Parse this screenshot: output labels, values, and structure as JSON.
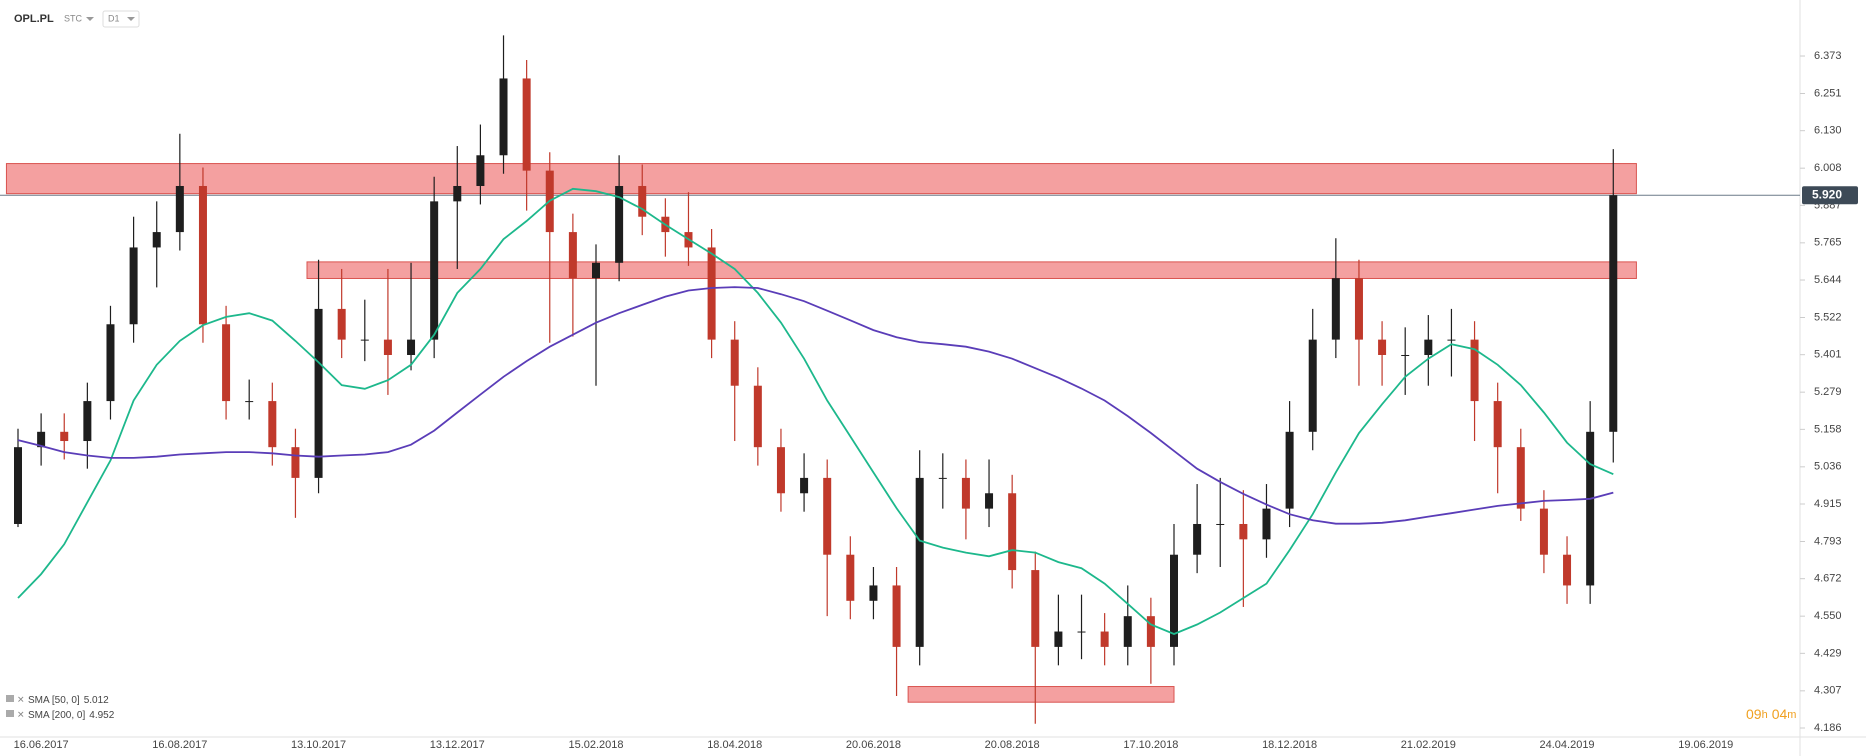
{
  "chart_data": {
    "type": "candlestick",
    "symbol": "OPL.PL",
    "price_type": "STC",
    "interval": "D1",
    "countdown": {
      "hours": "09",
      "hours_unit": "h",
      "minutes": "04",
      "minutes_unit": "m"
    },
    "categories": [
      null,
      "16.06.2017",
      null,
      null,
      null,
      null,
      null,
      "16.08.2017",
      null,
      null,
      null,
      null,
      null,
      "13.10.2017",
      null,
      null,
      null,
      null,
      null,
      "13.12.2017",
      null,
      null,
      null,
      null,
      null,
      "15.02.2018",
      null,
      null,
      null,
      null,
      null,
      "18.04.2018",
      null,
      null,
      null,
      null,
      null,
      "20.06.2018",
      null,
      null,
      null,
      null,
      null,
      "20.08.2018",
      null,
      null,
      null,
      null,
      null,
      "17.10.2018",
      null,
      null,
      null,
      null,
      null,
      "18.12.2018",
      null,
      null,
      null,
      null,
      null,
      "21.02.2019",
      null,
      null,
      null,
      null,
      null,
      "24.04.2019",
      null,
      null,
      null,
      null,
      null,
      "19.06.2019",
      null,
      null
    ],
    "open": [
      4.85,
      5.1,
      5.15,
      5.12,
      5.25,
      5.5,
      5.75,
      5.8,
      5.95,
      5.5,
      5.25,
      5.25,
      5.1,
      5.0,
      5.55,
      5.45,
      5.45,
      5.4,
      5.45,
      5.9,
      5.95,
      6.05,
      6.3,
      6.0,
      5.8,
      5.65,
      5.7,
      5.95,
      5.85,
      5.8,
      5.75,
      5.45,
      5.3,
      5.1,
      4.95,
      5.0,
      4.75,
      4.6,
      4.65,
      4.45,
      5.0,
      5.0,
      4.9,
      4.95,
      4.7,
      4.45,
      4.5,
      4.5,
      4.45,
      4.55,
      4.45,
      4.75,
      4.85,
      4.85,
      4.8,
      4.9,
      5.15,
      5.45,
      5.65,
      5.45,
      5.4,
      5.4,
      5.45,
      5.45,
      5.25,
      5.1,
      4.9,
      4.75,
      4.65,
      5.15,
      null,
      null,
      null,
      null,
      null,
      null
    ],
    "high": [
      5.16,
      5.21,
      5.21,
      5.31,
      5.56,
      5.85,
      5.9,
      6.12,
      6.01,
      5.56,
      5.32,
      5.31,
      5.16,
      5.71,
      5.68,
      5.58,
      5.68,
      5.7,
      5.98,
      6.08,
      6.15,
      6.44,
      6.36,
      6.06,
      5.86,
      5.76,
      6.05,
      6.02,
      5.91,
      5.93,
      5.81,
      5.51,
      5.36,
      5.16,
      5.08,
      5.06,
      4.81,
      4.71,
      4.71,
      5.09,
      5.08,
      5.06,
      5.06,
      5.01,
      4.76,
      4.62,
      4.62,
      4.56,
      4.65,
      4.61,
      4.85,
      4.98,
      5.0,
      4.96,
      4.98,
      5.25,
      5.55,
      5.78,
      5.71,
      5.51,
      5.49,
      5.53,
      5.55,
      5.51,
      5.31,
      5.16,
      4.96,
      4.81,
      5.25,
      6.07,
      null,
      null,
      null,
      null,
      null,
      null
    ],
    "low": [
      4.84,
      5.04,
      5.06,
      5.03,
      5.19,
      5.44,
      5.62,
      5.74,
      5.44,
      5.19,
      5.19,
      5.04,
      4.87,
      4.95,
      5.39,
      5.38,
      5.27,
      5.35,
      5.39,
      5.68,
      5.89,
      5.99,
      5.87,
      5.44,
      5.46,
      5.3,
      5.64,
      5.79,
      5.72,
      5.69,
      5.39,
      5.12,
      5.04,
      4.89,
      4.89,
      4.55,
      4.54,
      4.54,
      4.29,
      4.39,
      4.9,
      4.8,
      4.84,
      4.64,
      4.2,
      4.39,
      4.41,
      4.39,
      4.39,
      4.33,
      4.39,
      4.69,
      4.71,
      4.58,
      4.74,
      4.84,
      5.09,
      5.39,
      5.3,
      5.3,
      5.27,
      5.3,
      5.33,
      5.12,
      4.95,
      4.86,
      4.69,
      4.59,
      4.59,
      5.05,
      null,
      null,
      null,
      null,
      null,
      null
    ],
    "close": [
      5.1,
      5.15,
      5.12,
      5.25,
      5.5,
      5.75,
      5.8,
      5.95,
      5.5,
      5.25,
      5.25,
      5.1,
      5.0,
      5.55,
      5.45,
      5.45,
      5.4,
      5.45,
      5.9,
      5.95,
      6.05,
      6.3,
      6.0,
      5.8,
      5.65,
      5.7,
      5.95,
      5.85,
      5.8,
      5.75,
      5.45,
      5.3,
      5.1,
      4.95,
      5.0,
      4.75,
      4.6,
      4.65,
      4.45,
      5.0,
      5.0,
      4.9,
      4.95,
      4.7,
      4.45,
      4.5,
      4.5,
      4.45,
      4.55,
      4.45,
      4.75,
      4.85,
      4.85,
      4.8,
      4.9,
      5.15,
      5.45,
      5.65,
      5.45,
      5.4,
      5.4,
      5.45,
      5.45,
      5.25,
      5.1,
      4.9,
      4.75,
      4.65,
      5.15,
      5.92,
      null,
      null,
      null,
      null,
      null,
      null
    ],
    "up_color": "#1e1e1e",
    "down_color": "#c0392b",
    "series": [
      {
        "name": "SMA [50, 0]",
        "last_value": 5.012,
        "color": "#1db88c",
        "values": [
          4.609,
          4.687,
          4.784,
          4.921,
          5.057,
          5.252,
          5.368,
          5.446,
          5.497,
          5.524,
          5.536,
          5.512,
          5.446,
          5.376,
          5.302,
          5.29,
          5.318,
          5.368,
          5.466,
          5.602,
          5.68,
          5.777,
          5.836,
          5.902,
          5.941,
          5.933,
          5.914,
          5.875,
          5.824,
          5.777,
          5.73,
          5.68,
          5.602,
          5.505,
          5.388,
          5.252,
          5.135,
          5.018,
          4.901,
          4.796,
          4.773,
          4.757,
          4.745,
          4.765,
          4.757,
          4.726,
          4.706,
          4.656,
          4.59,
          4.523,
          4.492,
          4.523,
          4.562,
          4.609,
          4.656,
          4.765,
          4.882,
          5.018,
          5.146,
          5.24,
          5.329,
          5.388,
          5.435,
          5.419,
          5.368,
          5.302,
          5.213,
          5.115,
          5.045,
          5.012,
          null,
          null,
          null,
          null,
          null,
          null
        ]
      },
      {
        "name": "SMA [200, 0]",
        "last_value": 4.952,
        "color": "#5a3db8",
        "values": [
          5.123,
          5.104,
          5.084,
          5.073,
          5.065,
          5.065,
          5.069,
          5.076,
          5.08,
          5.084,
          5.084,
          5.08,
          5.073,
          5.069,
          5.073,
          5.076,
          5.084,
          5.108,
          5.154,
          5.213,
          5.271,
          5.329,
          5.38,
          5.427,
          5.466,
          5.505,
          5.536,
          5.563,
          5.59,
          5.61,
          5.618,
          5.621,
          5.618,
          5.598,
          5.575,
          5.544,
          5.513,
          5.481,
          5.458,
          5.442,
          5.435,
          5.427,
          5.411,
          5.388,
          5.357,
          5.326,
          5.291,
          5.252,
          5.201,
          5.146,
          5.088,
          5.03,
          4.987,
          4.948,
          4.913,
          4.882,
          4.862,
          4.851,
          4.851,
          4.854,
          4.862,
          4.874,
          4.885,
          4.897,
          4.909,
          4.917,
          4.925,
          4.928,
          4.932,
          4.952,
          null,
          null,
          null,
          null,
          null,
          null
        ]
      }
    ],
    "zones": [
      {
        "low": 5.925,
        "high": 6.023,
        "from": 0,
        "to": 70
      },
      {
        "low": 5.649,
        "high": 5.703,
        "from": 13,
        "to": 70
      },
      {
        "low": 4.27,
        "high": 4.321,
        "from": 39,
        "to": 50
      }
    ],
    "zone_color": "#f08080",
    "current_price": {
      "value": 5.92,
      "label": "5.920"
    },
    "ylim": [
      4.16,
      6.5
    ],
    "yticks": [
      6.373,
      6.251,
      {
        "value": 6.13,
        "label": "6.130"
      },
      6.008,
      5.887,
      5.765,
      5.644,
      5.522,
      5.401,
      5.279,
      5.158,
      5.036,
      4.915,
      4.793,
      4.672,
      {
        "value": 4.55,
        "label": "4.550"
      },
      4.429,
      4.307,
      4.186
    ]
  }
}
